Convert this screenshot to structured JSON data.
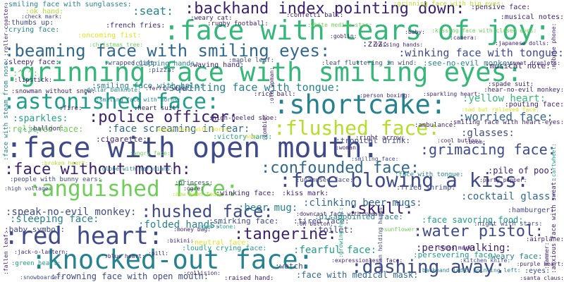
{
  "colors": {
    "purple": "#3b1f6e",
    "indigo": "#3e4a89",
    "blue": "#31688e",
    "teal": "#26828e",
    "green": "#1f9e89",
    "lightgreen": "#35b779",
    "lime": "#6ece58",
    "yellowgreen": "#b5de2b",
    "yellow": "#e4e11b"
  },
  "words": [
    ":face with tears of joy:",
    ":grinning face with smiling eyes:",
    ":face with open mouth:",
    ":knocked-out face:",
    ":beaming face with smiling eyes:",
    ":anguished face:",
    ":face blowing a kiss:",
    ":red heart:",
    ":backhand index pointing down:",
    ":shortcake:",
    ":astonished face:",
    ":flushed face:",
    ":police officer:",
    ":dashing away:",
    ":face without mouth:",
    ":confounded face:",
    ":grimacing face:",
    ":hushed face:",
    ":tangerine:",
    ":water pistol:",
    ":skull:",
    ":winking face with tongue:",
    ":squinting face with tongue:",
    ":smiling face with sunglasses:",
    ":seat:",
    ":speak-no-evil monkey:",
    ":sleeping face:",
    ":folded hands:",
    ":clinking beer mugs:",
    ":beer mug:",
    ":pile of poo:",
    ":yellow heart:",
    ":worried face:",
    ":glasses:",
    ":cocktail glass:",
    ":face screaming in fear:",
    ":sparkles:",
    ":relieved face:",
    ":person walking:",
    ":fearful face:",
    ":face with medical mask:",
    ":frowning face with open mouth:",
    ":zzz:",
    ":see-no-evil monkey:",
    ":musical note:",
    ":smiling face with halo:",
    ":cigarette:",
    ":tropical drink:",
    ":smirking face:",
    ":tired face:",
    ":toilet:",
    ":face savoring food:",
    ":hamburger:",
    ":baby symbol:",
    ":disappointed face:",
    ":loudly crying face:",
    ":neutral face:",
    ":watch:",
    ":persevering face:",
    ":weary face:",
    ":eyes:",
    ":ok hand:",
    ":thumbs up:",
    ":crying face:",
    ":french fries:",
    ":oncoming fist:",
    ":sleepy face:",
    ":wrapped gift:",
    ":clapping hands:",
    ":waving hand:",
    ":maple leaf:",
    ":leaf fluttering in wind:",
    ":snowman without snow:",
    ":dollar banknote:",
    ":pensive face:",
    ":musical notes:",
    ":weary cat:",
    ":confetti ball:",
    ":fire:",
    ":balloon:",
    ":angry face with horns:",
    ":victory hand:",
    ":smiling face with heart-eyes:",
    ":hear-no-evil monkey:",
    ":pouting face:",
    ":high voltage:",
    ":people with bunny ears:",
    ":princess:",
    ":winking face:",
    ":kiss mark:",
    ":fried shrimp:",
    ":party popper:",
    ":unamused face:",
    ":face with tongue:",
    ":night with stars:",
    ":airplane:",
    ":raised hand:",
    ":collision:",
    ":santa claus:",
    ":purple heart:",
    ":green heart:",
    ":jack-o-lantern:",
    ":snowboarder:",
    ":right arrow:",
    ":ambulance:",
    ":rugby football:",
    ":grinning face with big eyes:",
    ":rice ball:",
    ":heart suit:",
    ":spade suit:",
    ":broken heart:",
    ":new moon face:",
    ":sweat droplets:",
    ":roller coaster:",
    ":face with steam from nose:",
    ":fallen leaf:",
    ":lipstick:",
    ":smiling face with horns:",
    ":ferris wheel:",
    ":high-heeled shoe:",
    ":money bag:",
    ":bikini:",
    ":pill:",
    ":gem stone:",
    ":woman:",
    ":boom:",
    ":OK button:",
    ":cross mark:",
    ":kitchen knife:",
    ":anxious face with sweat:",
    ":cartwheel:",
    ":mobile phone:",
    ":zombie:",
    ":^_^:",
    ":^.^:",
    ":check mark:",
    ":pizza:",
    ":christmas tree:",
    ":goblin:",
    ":baby:",
    ":camera:",
    ":japanese dolls:",
    ":raising hands:",
    ":sunflower:",
    ":person boxing:",
    ":sparkling heart:",
    ":sad but relieved face:",
    ":angry face:",
    ":sun:",
    ":cool button:",
    ":downcast face with sweat:",
    ":smiling face:",
    ":ogre:",
    ":growing heart:",
    ":woman holding hands:",
    ":blue heart:",
    ":expressionless face:",
    ":old woman:",
    ":hammer:",
    ":backhand index pointing left:",
    ":globe with meridians:",
    ":white medium star:",
    ":kissing face with closed eyes:",
    ":face with tears:"
  ]
}
